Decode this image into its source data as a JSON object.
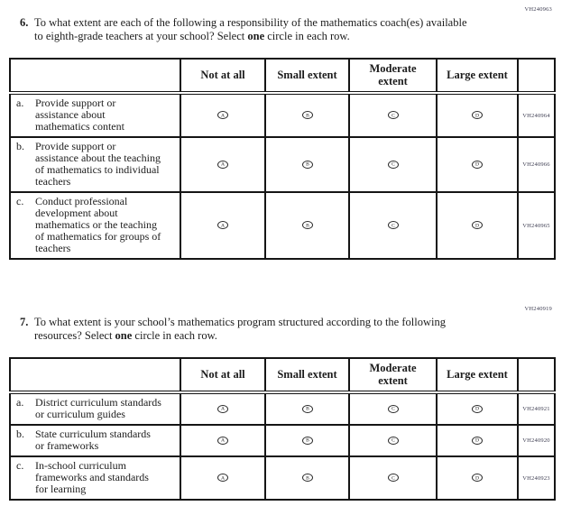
{
  "bubble_letters": [
    "A",
    "B",
    "C",
    "D"
  ],
  "questions": [
    {
      "code": "VH240963",
      "number": "6.",
      "prompt": {
        "start": "To what extent are each of the following a responsibility of the mathematics coach(es) available to eighth-grade teachers at your school? Select ",
        "bold": "one",
        "end": " circle in each row."
      },
      "table": {
        "columns": [
          "Not at all",
          "Small extent",
          "Moderate extent",
          "Large extent"
        ],
        "rows": [
          {
            "letter": "a.",
            "label": "Provide support or assistance about mathematics content",
            "code": "VH240964"
          },
          {
            "letter": "b.",
            "label": "Provide support or assistance about the teaching of mathematics to individual teachers",
            "code": "VH240966"
          },
          {
            "letter": "c.",
            "label": "Conduct professional development about mathematics or the teaching of mathematics for groups of teachers",
            "code": "VH240965"
          }
        ]
      }
    },
    {
      "code": "VH240919",
      "number": "7.",
      "prompt": {
        "start": "To what extent is your school’s mathematics program structured according to the following resources? Select ",
        "bold": "one",
        "end": " circle in each row."
      },
      "table": {
        "columns": [
          "Not at all",
          "Small extent",
          "Moderate extent",
          "Large extent"
        ],
        "rows": [
          {
            "letter": "a.",
            "label": "District curriculum standards or curriculum guides",
            "code": "VH240921"
          },
          {
            "letter": "b.",
            "label": "State curriculum standards or frameworks",
            "code": "VH240920"
          },
          {
            "letter": "c.",
            "label": "In-school curriculum frameworks and standards for learning",
            "code": "VH240923"
          }
        ]
      }
    }
  ]
}
